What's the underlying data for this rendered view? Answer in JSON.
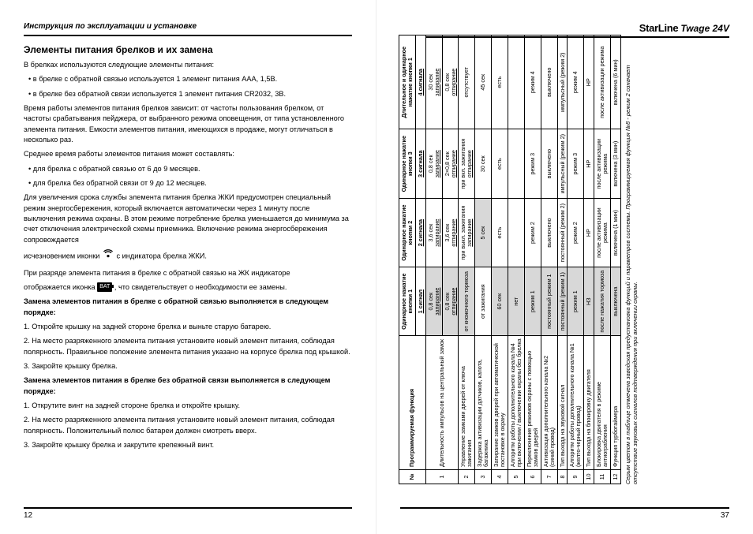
{
  "left": {
    "header": "Инструкция по эксплуатации и установке",
    "page_number": "12",
    "h2": "Элементы питания брелков и их замена",
    "intro": "В брелках используются следующие элементы питания:",
    "bullets1": [
      "в брелке с обратной связью используется 1 элемент питания ААА, 1,5В.",
      "в брелке без обратной связи используется 1 элемент питания CR2032, 3В."
    ],
    "p1": "Время работы элементов питания брелков зависит: от частоты пользования брелком, от частоты срабатывания пейджера, от выбранного режима оповещения, от типа установленного элемента питания. Емкости элементов питания, имеющихся в продаже, могут отличаться в несколько раз.",
    "p2": "Среднее время работы элементов питания может составлять:",
    "bullets2": [
      "для брелка с обратной связью от 6 до 9 месяцев.",
      "для брелка без обратной связи от 9 до 12 месяцев."
    ],
    "p3": "Для увеличения срока службы элемента питания брелка ЖКИ предусмотрен специальный режим энергосбережения, который включается автоматически через 1 минуту после выключения режима охраны. В этом режиме потребление брелка уменьшается до минимума за счет отключения электрической схемы приемника. Включение режима энергосбережения сопровождается",
    "p3b_before": "исчезновением иконки",
    "p3b_after": "с индикатора брелка ЖКИ.",
    "p4": "При разряде элемента питания в брелке с обратной связью на ЖК индикаторе",
    "p4b_before": "отображается иконка",
    "p4b_after": ", что свидетельствует о необходимости ее замены.",
    "bat_label": "BAT",
    "sub1_title": "Замена элементов питания в брелке с обратной связью выполняется в следующем порядке:",
    "sub1_steps": [
      "1. Откройте крышку на задней стороне брелка и выньте старую батарею.",
      "2. На место разряженного элемента питания установите новый элемент питания, соблюдая полярность. Правильное положение элемента питания указано на корпусе брелка под крышкой.",
      "3. Закройте крышку брелка."
    ],
    "sub2_title": "Замена элементов питания в брелке без обратной связи выполняется в следующем порядке:",
    "sub2_steps": [
      "1. Открутите винт на задней стороне брелка и откройте крышку.",
      "2. На место разряженного элемента питания установите новый элемент питания, соблюдая полярность. Положительный полюс батареи должен смотреть вверх.",
      "3. Закройте крышку брелка и закрутите крепежный винт."
    ]
  },
  "right": {
    "brand": "StarLine",
    "model": "Twage 24V",
    "page_number": "37",
    "thead": {
      "num": "№",
      "func": "Программируемая функция",
      "c1": "Одинарное нажатие кнопки 1",
      "c2": "Одинарное нажатие кнопки 2",
      "c3": "Одинарное нажатие кнопки 3",
      "c4": "Длительное и одинарное нажатие кнопки 1"
    },
    "sub": {
      "s1": "1 сигнал",
      "s2": "2 сигнала",
      "s3": "3 сигнала",
      "s4": "4 сигнала"
    },
    "rows": [
      {
        "n": "1",
        "f": "Длительность импульсов на центральный замок",
        "a": {
          "t": "0,8 сек",
          "u": "запирание",
          "sh": true
        },
        "b": {
          "t": "3,6 сек",
          "u": "запирание"
        },
        "c": {
          "t": "0,8 сек",
          "u": "запирание"
        },
        "d": {
          "t": "30 сек",
          "u": "запирание"
        }
      },
      {
        "n": "",
        "f": "",
        "a": {
          "t": "0,8 сек",
          "u": "отпирание",
          "sh": true
        },
        "b": {
          "t": "3,6 сек",
          "u": "отпирание"
        },
        "c": {
          "t": "2×0,8 сек",
          "u": "отпирание"
        },
        "d": {
          "t": "0,8 сек",
          "u": "отпирание"
        }
      },
      {
        "n": "2",
        "f": "Управление замками дверей от ключа зажигания",
        "a": {
          "t": "от кножочного тормоза",
          "sh": true
        },
        "b": {
          "t": "при выкл. зажигания",
          "u": "запирание"
        },
        "c": {
          "t": "при вкл. зажигания",
          "u": "отпирание"
        },
        "d": {
          "t": "отсутствует"
        }
      },
      {
        "n": "3",
        "f": "Задержка активизации датчиков, капота, багажника",
        "a": {
          "t": "от зажигания"
        },
        "b": {
          "t": "5 сек",
          "sh": true
        },
        "c": {
          "t": "30 сек"
        },
        "d": {
          "t": "45 сек"
        }
      },
      {
        "n": "4",
        "f": "Запирание замков дверей при автоматической постановке в охрану",
        "a": {
          "t": "60 сек",
          "sh": true
        },
        "b": {
          "t": "есть"
        },
        "c": {
          "t": "есть"
        },
        "d": {
          "t": "есть"
        }
      },
      {
        "n": "5",
        "f": "Алгоритм работы дополнительного канала №4 при включении / выключении охраны без брелка",
        "a": {
          "t": "нет",
          "sh": true
        },
        "b": {
          "t": ""
        },
        "c": {
          "t": ""
        },
        "d": {
          "t": ""
        }
      },
      {
        "n": "6",
        "f": "Переключение режимов охраны с помощью замков дверей",
        "a": {
          "t": "режим 1",
          "sh": true
        },
        "b": {
          "t": "режим 2"
        },
        "c": {
          "t": "режим 3"
        },
        "d": {
          "t": "режим 4"
        }
      },
      {
        "n": "7",
        "f": "Активизация дополнительного канала №2 (синий провод)",
        "a": {
          "t": "постоянный режим 1",
          "sh": true
        },
        "b": {
          "t": "выключено"
        },
        "c": {
          "t": "выключено"
        },
        "d": {
          "t": "выключено"
        }
      },
      {
        "n": "8",
        "f": "Тип выхода на звуковой сигнал",
        "a": {
          "t": "постоянный (режим 1)",
          "sh": true
        },
        "b": {
          "t": "постоянный (режим 2)"
        },
        "c": {
          "t": "импульсный (режим 2)"
        },
        "d": {
          "t": "импульсный (режим 2)"
        }
      },
      {
        "n": "9",
        "f": "Алгоритм работы дополнительного канала №1 (желто-черный провод)",
        "a": {
          "t": "режим 1",
          "sh": true
        },
        "b": {
          "t": "режим 2"
        },
        "c": {
          "t": "режим 3"
        },
        "d": {
          "t": "режим 4"
        }
      },
      {
        "n": "10",
        "f": "Тип выхода на блокировку двигателя",
        "a": {
          "t": "НЗ",
          "sh": true
        },
        "b": {
          "t": "НР"
        },
        "c": {
          "t": "НР"
        },
        "d": {
          "t": "НР"
        }
      },
      {
        "n": "11",
        "f": "Блокировка двигателя в режиме антиограбления",
        "a": {
          "t": "после нажатия тормоза",
          "sh": true
        },
        "b": {
          "t": "после активизации режима"
        },
        "c": {
          "t": "после активизации режима"
        },
        "d": {
          "t": "после активизации режима"
        }
      },
      {
        "n": "12",
        "f": "Функция турботаймера",
        "a": {
          "t": "выключена",
          "sh": true
        },
        "b": {
          "t": "включена (1 мин)"
        },
        "c": {
          "t": "включена (3 мин)"
        },
        "d": {
          "t": "включена (6 мин)"
        }
      }
    ],
    "note": "Серым цветом в таблице отмечена заводская предустановка функций и параметров системы. Программируемая функция №8 - режим 2 означает отсутствие звуковых сигналов подтверждения при включении охраны."
  }
}
